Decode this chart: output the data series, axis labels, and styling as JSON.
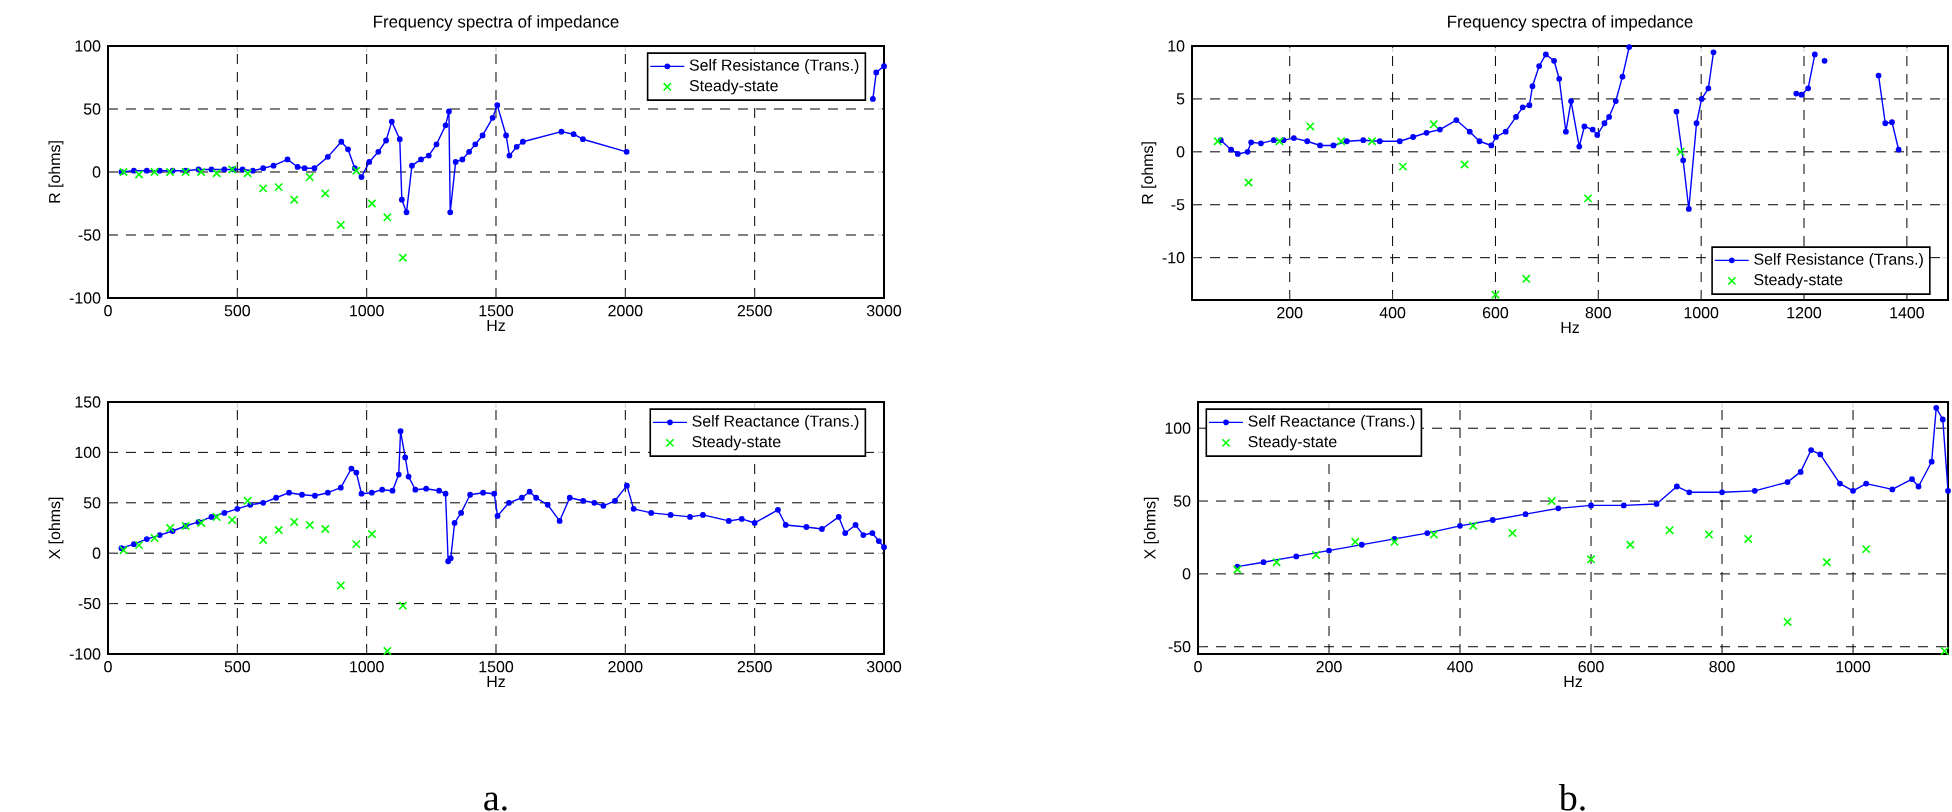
{
  "chart_data": [
    {
      "type": "line",
      "title": "Frequency spectra of impedance",
      "xlabel": "Hz",
      "ylabel": "R [ohms]",
      "xlim": [
        0,
        3000
      ],
      "xticks": [
        0,
        500,
        1000,
        1500,
        2000,
        2500,
        3000
      ],
      "ylim": [
        -100,
        100
      ],
      "yticks": [
        -100,
        -50,
        0,
        50,
        100
      ],
      "grid": true,
      "legend": "top right",
      "series": [
        {
          "name": "Self Resistance (Trans.)",
          "color": "#0000ff",
          "marker": "circle",
          "x": [
            52,
            100,
            150,
            200,
            250,
            300,
            350,
            400,
            450,
            486,
            520,
            560,
            600,
            640,
            694,
            733,
            760,
            798,
            850,
            902,
            928,
            954,
            980,
            1010,
            1045,
            1075,
            1097,
            1128,
            1136,
            1154,
            1175,
            1210,
            1240,
            1270,
            1305,
            1318,
            1323,
            1344,
            1370,
            1396,
            1420,
            1448,
            1487,
            1505,
            1539,
            1552,
            1580,
            1604,
            1753,
            1800,
            1836,
            2005,
            2500,
            2957,
            2970,
            3000
          ],
          "values": [
            0,
            1,
            1,
            1,
            1,
            1,
            2,
            2,
            2,
            2,
            2,
            1,
            3,
            5,
            10,
            4,
            3,
            3,
            12,
            24,
            18,
            3,
            -4,
            8,
            16,
            25,
            40,
            26,
            -22,
            -32,
            5,
            10,
            13,
            22,
            37,
            48,
            -32,
            8,
            10,
            16,
            22,
            29,
            43,
            53,
            29,
            13,
            20,
            24,
            32,
            30,
            26,
            16,
            null,
            58,
            79,
            84
          ]
        },
        {
          "name": "Steady-state",
          "type": "scatter",
          "color": "#00ff00",
          "marker": "cross",
          "x": [
            60,
            120,
            180,
            240,
            300,
            360,
            420,
            480,
            540,
            600,
            660,
            720,
            780,
            840,
            900,
            960,
            1020,
            1080,
            1140
          ],
          "values": [
            0,
            -2,
            0,
            0,
            0,
            0,
            -1,
            2,
            -1,
            -13,
            -12,
            -22,
            -4,
            -17,
            -42,
            1,
            -25,
            -36,
            -68
          ]
        }
      ]
    },
    {
      "type": "line",
      "xlabel": "Hz",
      "ylabel": "X [ohms]",
      "xlim": [
        0,
        3000
      ],
      "xticks": [
        0,
        500,
        1000,
        1500,
        2000,
        2500,
        3000
      ],
      "ylim": [
        -100,
        150
      ],
      "yticks": [
        -100,
        -50,
        0,
        50,
        100,
        150
      ],
      "grid": true,
      "legend": "top right",
      "annotations": [
        "a."
      ],
      "series": [
        {
          "name": "Self Reactance (Trans.)",
          "color": "#0000ff",
          "marker": "circle",
          "x": [
            52,
            100,
            150,
            200,
            250,
            300,
            350,
            400,
            450,
            500,
            550,
            600,
            650,
            700,
            750,
            800,
            850,
            900,
            941,
            960,
            980,
            1020,
            1060,
            1100,
            1124,
            1131,
            1149,
            1162,
            1188,
            1230,
            1280,
            1305,
            1315,
            1325,
            1340,
            1365,
            1400,
            1450,
            1493,
            1506,
            1550,
            1600,
            1630,
            1655,
            1700,
            1746,
            1785,
            1837,
            1880,
            1915,
            1960,
            2006,
            2032,
            2100,
            2175,
            2250,
            2300,
            2400,
            2450,
            2500,
            2590,
            2620,
            2700,
            2760,
            2825,
            2850,
            2890,
            2920,
            2955,
            2980,
            3000
          ],
          "values": [
            5,
            9,
            14,
            18,
            22,
            27,
            31,
            36,
            40,
            44,
            48,
            50,
            55,
            60,
            58,
            57,
            60,
            65,
            84,
            80,
            59,
            60,
            63,
            62,
            78,
            121,
            95,
            76,
            63,
            64,
            62,
            59,
            -8,
            -5,
            30,
            40,
            58,
            60,
            59,
            37,
            50,
            55,
            61,
            55,
            48,
            32,
            55,
            52,
            50,
            47,
            52,
            67,
            44,
            40,
            38,
            36,
            38,
            32,
            34,
            30,
            43,
            28,
            26,
            24,
            36,
            20,
            28,
            18,
            20,
            12,
            6
          ]
        },
        {
          "name": "Steady-state",
          "type": "scatter",
          "color": "#00ff00",
          "marker": "cross",
          "x": [
            60,
            120,
            180,
            240,
            300,
            360,
            420,
            480,
            540,
            600,
            660,
            720,
            780,
            840,
            900,
            960,
            1020,
            1080,
            1140
          ],
          "values": [
            3,
            8,
            15,
            25,
            27,
            30,
            36,
            33,
            52,
            13,
            23,
            31,
            28,
            24,
            -32,
            9,
            19,
            -97,
            -52
          ]
        }
      ]
    },
    {
      "type": "line",
      "title": "Frequency spectra of impedance",
      "xlabel": "Hz",
      "ylabel": "R [ohms]",
      "xlim": [
        10,
        1480
      ],
      "xticks": [
        200,
        400,
        600,
        800,
        1000,
        1200,
        1400
      ],
      "ylim": [
        -14,
        10
      ],
      "yticks": [
        -10,
        -5,
        0,
        5,
        10
      ],
      "grid": true,
      "legend": "bottom right",
      "series": [
        {
          "name": "Self Resistance (Trans.)",
          "color": "#0000ff",
          "marker": "circle",
          "x": [
            66,
            86,
            99,
            118,
            125,
            144,
            169,
            188,
            208,
            234,
            259,
            285,
            311,
            343,
            375,
            414,
            440,
            466,
            492,
            524,
            550,
            569,
            592,
            601,
            620,
            640,
            653,
            666,
            672,
            685,
            698,
            714,
            724,
            737,
            747,
            763,
            773,
            789,
            798,
            812,
            821,
            834,
            847,
            860,
            900,
            952,
            965,
            976,
            991,
            1001,
            1014,
            1024,
            1100,
            1185,
            1195,
            1208,
            1221,
            1230,
            1240,
            1300,
            1345,
            1358,
            1371,
            1384
          ],
          "values": [
            1.1,
            0.2,
            -0.2,
            0,
            0.9,
            0.8,
            1.1,
            1.1,
            1.3,
            1.0,
            0.6,
            0.6,
            1.0,
            1.1,
            1.0,
            1.0,
            1.4,
            1.8,
            2.1,
            3.0,
            1.9,
            1.0,
            0.6,
            1.4,
            1.9,
            3.3,
            4.2,
            4.4,
            6.2,
            8.1,
            9.2,
            8.6,
            6.9,
            1.9,
            4.8,
            0.5,
            2.4,
            2.1,
            1.6,
            2.7,
            3.3,
            4.8,
            7.1,
            9.9,
            null,
            3.8,
            -0.8,
            -5.4,
            2.7,
            5,
            6,
            9.4,
            null,
            5.5,
            5.4,
            6,
            9.2,
            null,
            8.6,
            null,
            7.2,
            2.7,
            2.8,
            0.2
          ]
        },
        {
          "name": "Steady-state",
          "type": "scatter",
          "color": "#00ff00",
          "marker": "cross",
          "x": [
            60,
            120,
            180,
            240,
            300,
            360,
            420,
            480,
            540,
            600,
            660,
            780,
            960
          ],
          "values": [
            1,
            -2.9,
            1,
            2.4,
            1,
            1,
            -1.4,
            2.6,
            -1.2,
            -13.5,
            -12,
            -4.4,
            0
          ]
        }
      ]
    },
    {
      "type": "line",
      "xlabel": "Hz",
      "ylabel": "X [ohms]",
      "xlim": [
        0,
        1145
      ],
      "xticks": [
        0,
        200,
        400,
        600,
        800,
        1000
      ],
      "ylim": [
        -55,
        118
      ],
      "yticks": [
        -50,
        0,
        50,
        100
      ],
      "grid": true,
      "legend": "top left",
      "annotations": [
        "b."
      ],
      "series": [
        {
          "name": "Self Reactance (Trans.)",
          "color": "#0000ff",
          "marker": "circle",
          "x": [
            60,
            100,
            150,
            200,
            250,
            300,
            350,
            400,
            450,
            500,
            550,
            600,
            650,
            700,
            731,
            750,
            800,
            850,
            900,
            920,
            936,
            950,
            980,
            1000,
            1020,
            1060,
            1090,
            1100,
            1120,
            1127,
            1137,
            1145
          ],
          "values": [
            5,
            8,
            12,
            16,
            20,
            24,
            28,
            33,
            37,
            41,
            45,
            47,
            47,
            48,
            60,
            56,
            56,
            57,
            63,
            70,
            85,
            82,
            62,
            57,
            62,
            58,
            65,
            60,
            77,
            114,
            106,
            57
          ]
        },
        {
          "name": "Steady-state",
          "type": "scatter",
          "color": "#00ff00",
          "marker": "cross",
          "x": [
            60,
            120,
            180,
            240,
            300,
            360,
            420,
            480,
            540,
            600,
            660,
            720,
            780,
            840,
            900,
            960,
            1020,
            1140
          ],
          "values": [
            3,
            8,
            13,
            22,
            22,
            27,
            33,
            28,
            50,
            10,
            20,
            30,
            27,
            24,
            -33,
            8,
            17,
            -53
          ]
        }
      ]
    }
  ]
}
